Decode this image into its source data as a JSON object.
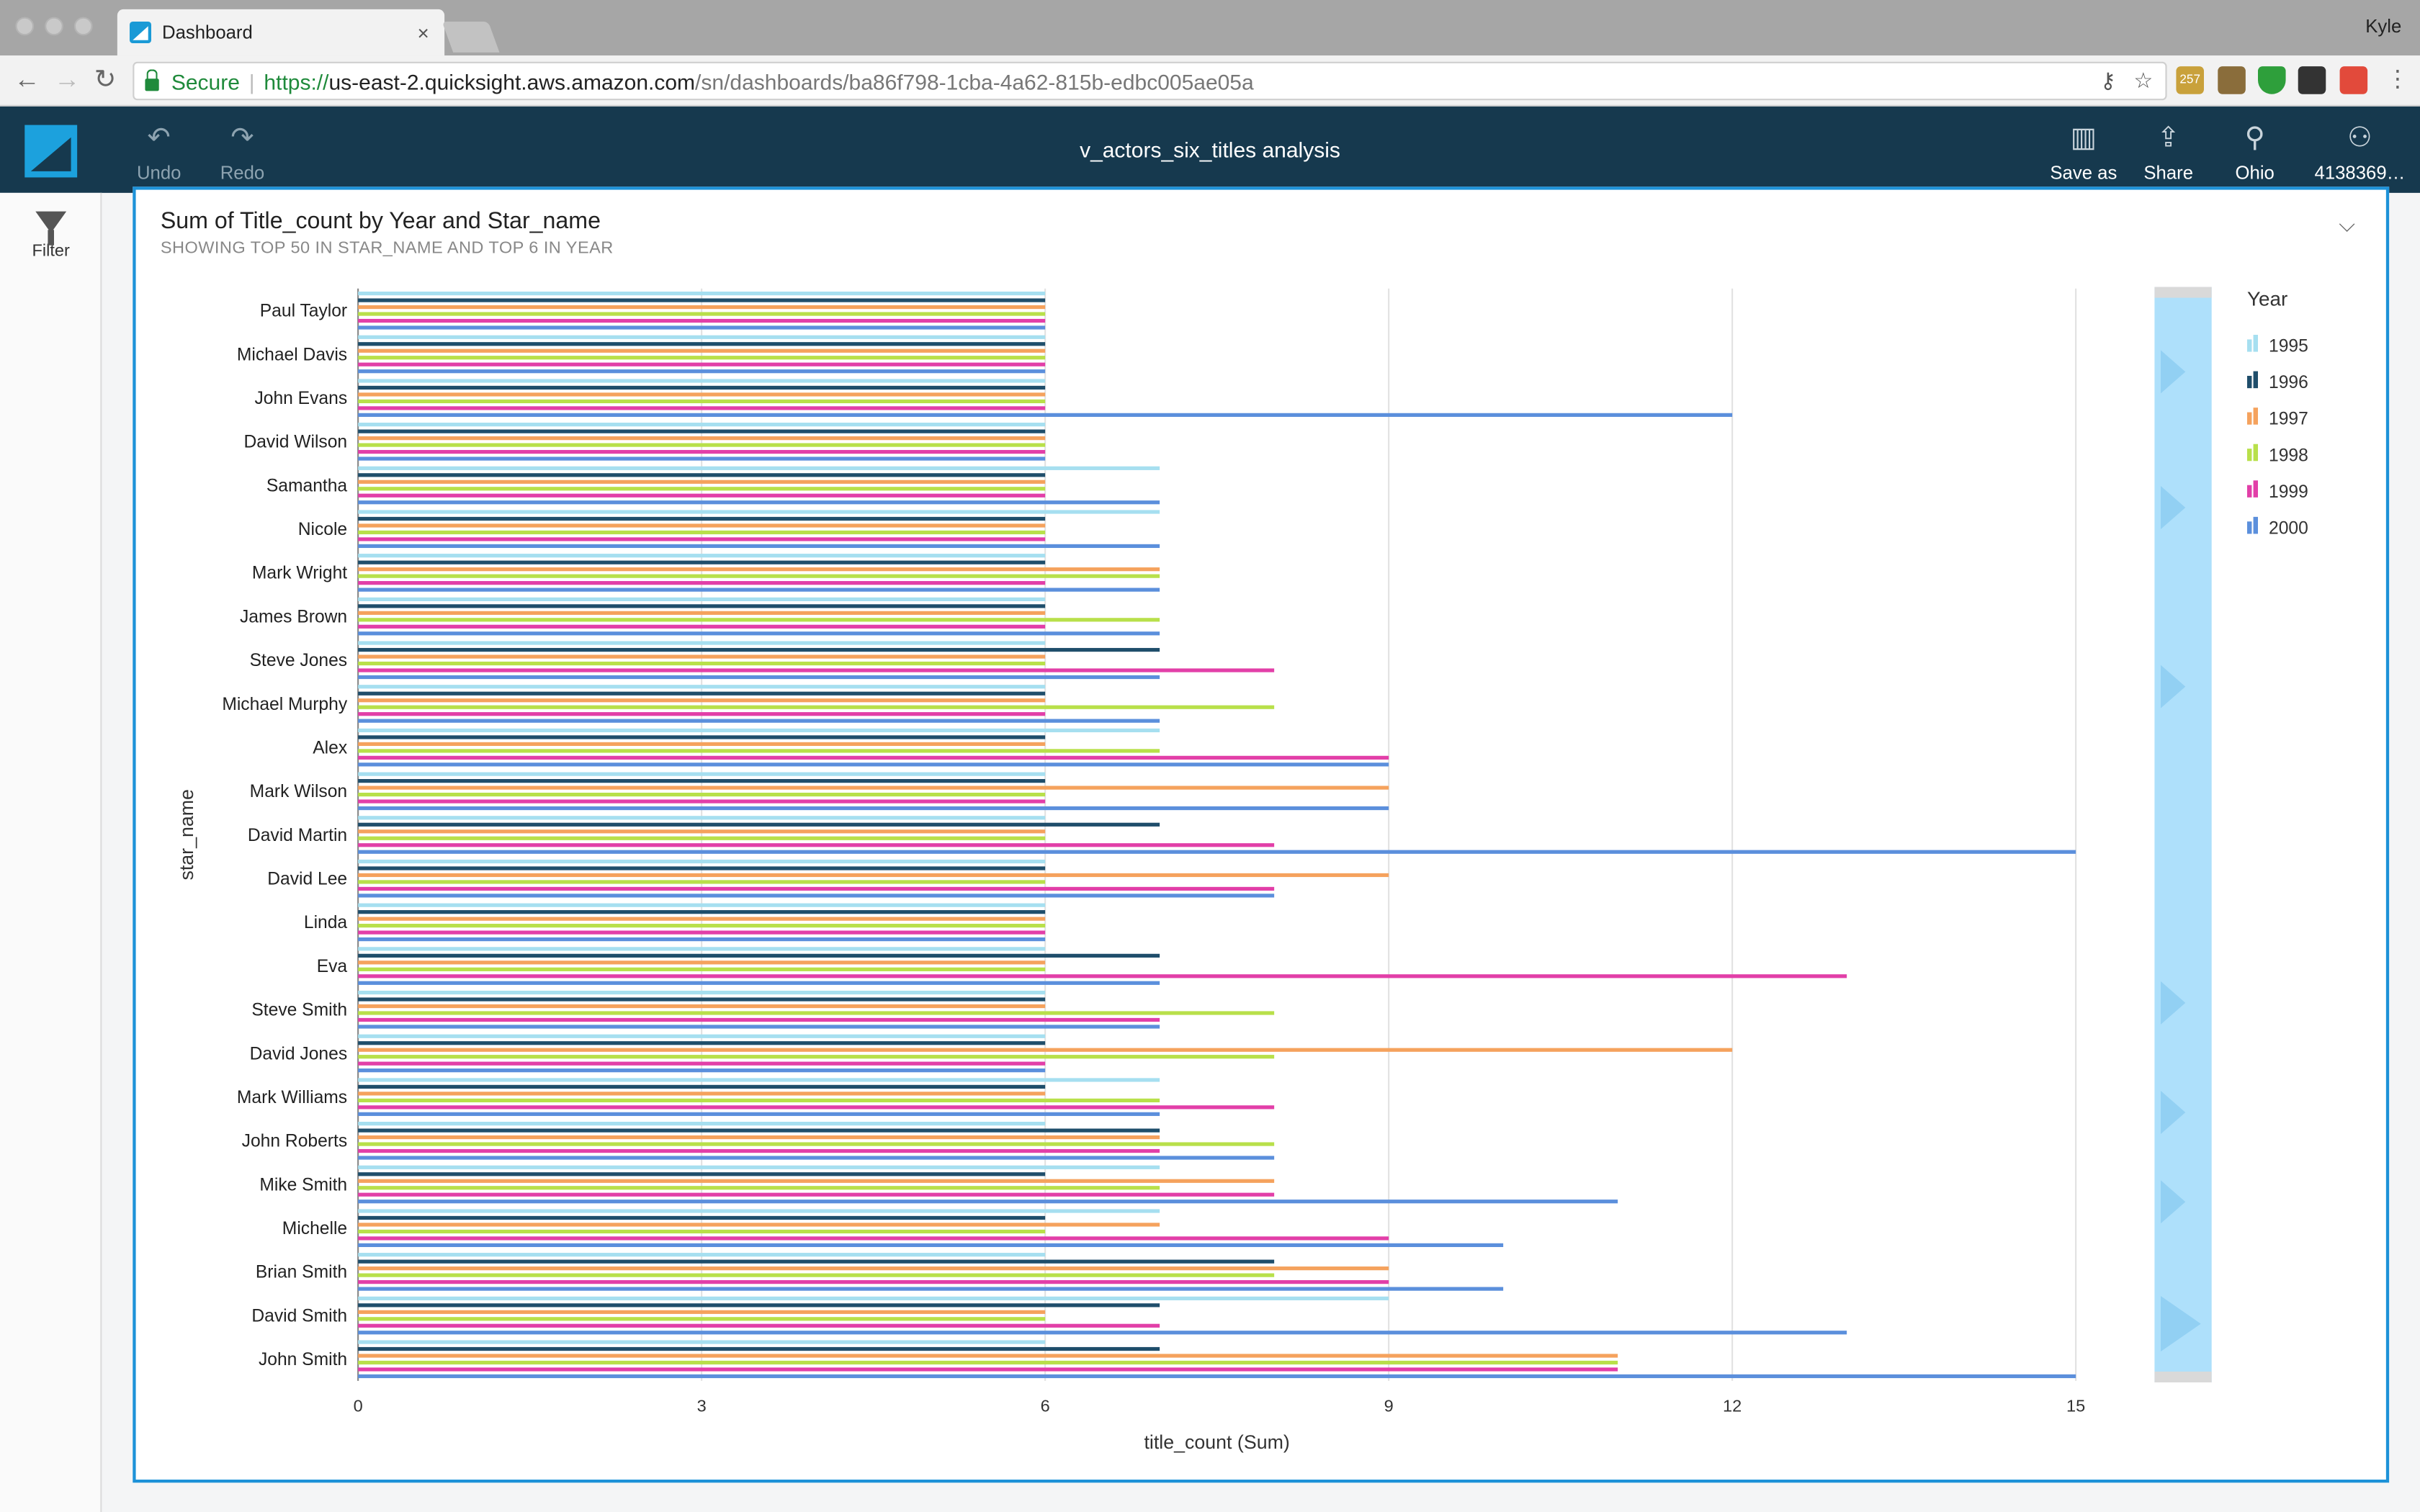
{
  "browser": {
    "tab_title": "Dashboard",
    "tab_close": "×",
    "user_name": "Kyle",
    "secure_label": "Secure",
    "url_scheme": "https://",
    "url_host": "us-east-2.quicksight.aws.amazon.com",
    "url_path": "/sn/dashboards/ba86f798-1cba-4a62-815b-edbc005ae05a",
    "back_glyph": "←",
    "forward_glyph": "→",
    "reload_glyph": "↻",
    "extension_badge": "257"
  },
  "appbar": {
    "title": "v_actors_six_titles analysis",
    "undo_label": "Undo",
    "redo_label": "Redo",
    "save_as_label": "Save as",
    "share_label": "Share",
    "region_label": "Ohio",
    "account_label": "4138369…",
    "logo_color": "#1ca1dd",
    "bar_color": "#16394e"
  },
  "leftrail": {
    "filter_label": "Filter"
  },
  "visual": {
    "title": "Sum of Title_count by Year and Star_name",
    "subtitle": "SHOWING TOP 50 IN STAR_NAME AND TOP 6 IN YEAR",
    "chevron": "⌵"
  },
  "chart_data": {
    "type": "bar",
    "orientation": "horizontal",
    "title": "Sum of Title_count by Year and Star_name",
    "xlabel": "title_count (Sum)",
    "ylabel": "star_name",
    "xlim": [
      0,
      15
    ],
    "xticks": [
      0,
      3,
      6,
      9,
      12,
      15
    ],
    "grid": true,
    "legend_title": "Year",
    "legend_position": "right",
    "legend": [
      {
        "name": "1995",
        "color": "#a6dff0"
      },
      {
        "name": "1996",
        "color": "#1f4e6b"
      },
      {
        "name": "1997",
        "color": "#f5a25d"
      },
      {
        "name": "1998",
        "color": "#b8e04a"
      },
      {
        "name": "1999",
        "color": "#e23fa8"
      },
      {
        "name": "2000",
        "color": "#5b8fdc"
      }
    ],
    "categories": [
      "Paul Taylor",
      "Michael Davis",
      "John Evans",
      "David Wilson",
      "Samantha",
      "Nicole",
      "Mark Wright",
      "James Brown",
      "Steve Jones",
      "Michael Murphy",
      "Alex",
      "Mark Wilson",
      "David Martin",
      "David Lee",
      "Linda",
      "Eva",
      "Steve Smith",
      "David Jones",
      "Mark Williams",
      "John Roberts",
      "Mike Smith",
      "Michelle",
      "Brian Smith",
      "David Smith",
      "John Smith"
    ],
    "series": [
      {
        "name": "1995",
        "values": [
          6,
          6,
          6,
          6,
          7,
          7,
          6,
          6,
          6,
          6,
          7,
          6,
          6,
          6,
          6,
          6,
          6,
          6,
          7,
          6,
          7,
          7,
          6,
          9,
          6
        ]
      },
      {
        "name": "1996",
        "values": [
          6,
          6,
          6,
          6,
          6,
          6,
          6,
          6,
          7,
          6,
          6,
          6,
          7,
          6,
          6,
          7,
          6,
          6,
          6,
          7,
          6,
          6,
          8,
          7,
          7
        ]
      },
      {
        "name": "1997",
        "values": [
          6,
          6,
          6,
          6,
          6,
          6,
          7,
          6,
          6,
          6,
          6,
          9,
          6,
          9,
          6,
          6,
          6,
          12,
          6,
          7,
          8,
          7,
          9,
          6,
          11
        ]
      },
      {
        "name": "1998",
        "values": [
          6,
          6,
          6,
          6,
          6,
          6,
          7,
          7,
          6,
          8,
          7,
          6,
          6,
          6,
          6,
          6,
          8,
          8,
          7,
          8,
          7,
          6,
          8,
          6,
          11
        ]
      },
      {
        "name": "1999",
        "values": [
          6,
          6,
          6,
          6,
          6,
          6,
          6,
          6,
          8,
          6,
          9,
          6,
          8,
          8,
          6,
          13,
          7,
          6,
          8,
          7,
          8,
          9,
          9,
          7,
          11
        ]
      },
      {
        "name": "2000",
        "values": [
          6,
          6,
          12,
          6,
          7,
          7,
          7,
          7,
          7,
          7,
          9,
          9,
          15,
          8,
          6,
          7,
          7,
          6,
          7,
          8,
          11,
          10,
          10,
          13,
          15
        ]
      }
    ]
  }
}
